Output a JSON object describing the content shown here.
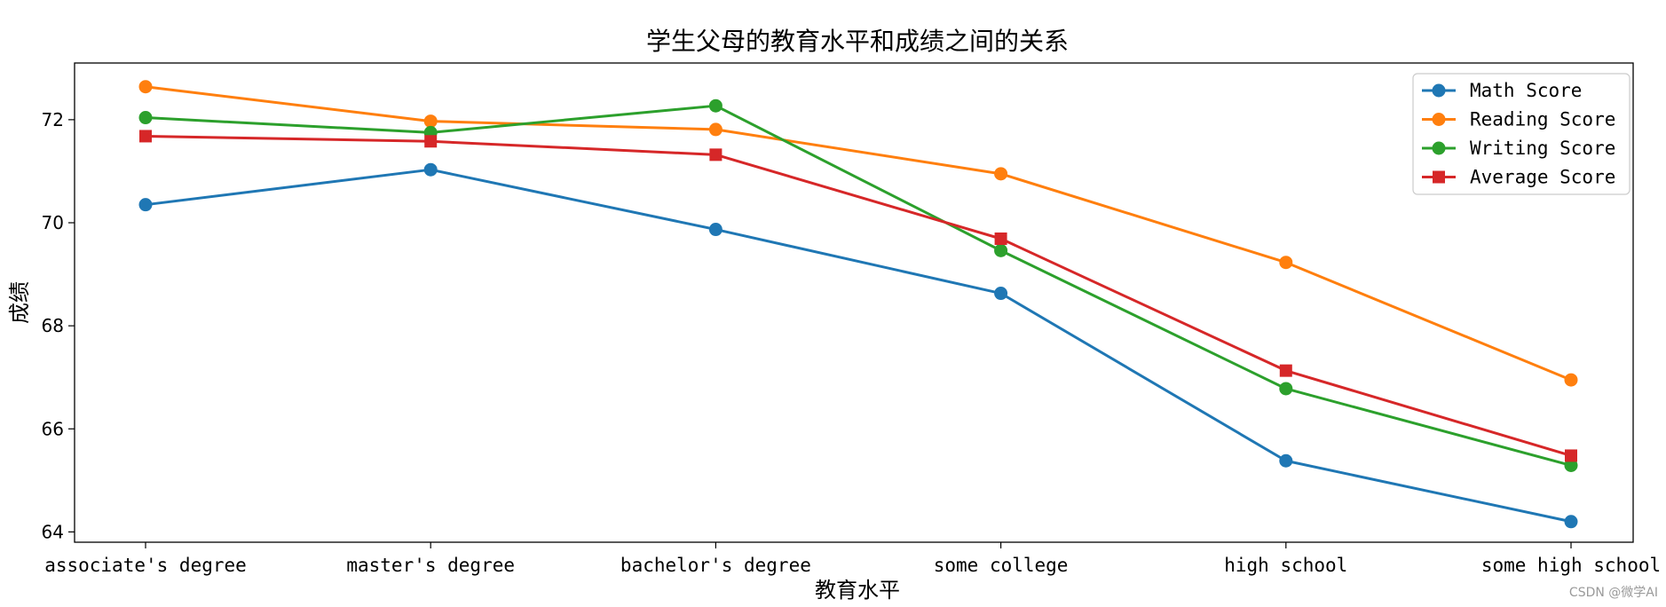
{
  "chart_data": {
    "type": "line",
    "title": "学生父母的教育水平和成绩之间的关系",
    "xlabel": "教育水平",
    "ylabel": "成绩",
    "categories": [
      "associate's degree",
      "master's degree",
      "bachelor's degree",
      "some college",
      "high school",
      "some high school"
    ],
    "y_ticks": [
      64,
      66,
      68,
      70,
      72
    ],
    "ylim": [
      63.8,
      73.1
    ],
    "grid": false,
    "legend_position": "top-right",
    "series": [
      {
        "name": "Math Score",
        "color": "#1f77b4",
        "marker": "circle",
        "values": [
          70.35,
          71.03,
          69.87,
          68.63,
          65.38,
          64.2
        ]
      },
      {
        "name": "Reading Score",
        "color": "#ff7f0e",
        "marker": "circle",
        "values": [
          72.64,
          71.97,
          71.81,
          70.95,
          69.23,
          66.95
        ]
      },
      {
        "name": "Writing Score",
        "color": "#2ca02c",
        "marker": "circle",
        "values": [
          72.04,
          71.75,
          72.27,
          69.46,
          66.78,
          65.29
        ]
      },
      {
        "name": "Average Score",
        "color": "#d62728",
        "marker": "square",
        "values": [
          71.68,
          71.58,
          71.32,
          69.69,
          67.13,
          65.48
        ]
      }
    ]
  },
  "watermark": "CSDN @微学AI"
}
